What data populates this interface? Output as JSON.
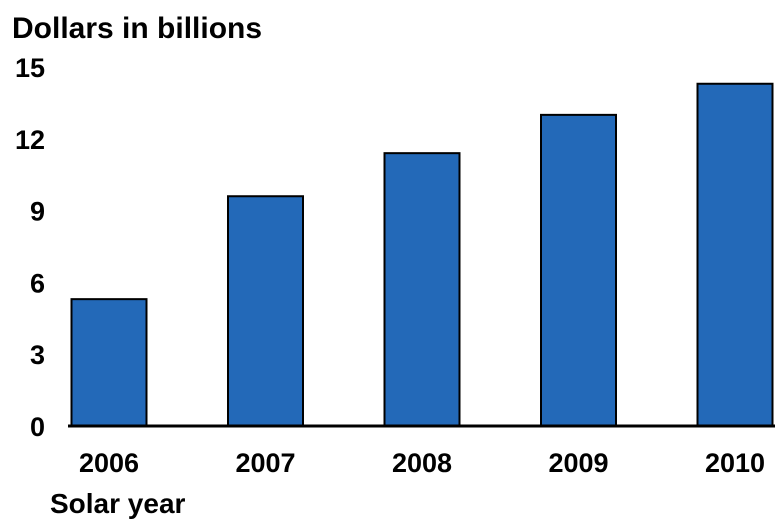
{
  "chart_data": {
    "type": "bar",
    "ylabel": "Dollars in billions",
    "xlabel": "Solar year",
    "categories": [
      "2006",
      "2007",
      "2008",
      "2009",
      "2010"
    ],
    "values": [
      5.3,
      9.6,
      11.4,
      13.0,
      14.3
    ],
    "ylim": [
      0,
      15
    ],
    "yticks": [
      "0",
      "3",
      "6",
      "9",
      "12",
      "15"
    ],
    "bar_color": "#2369B8",
    "grid": false
  }
}
